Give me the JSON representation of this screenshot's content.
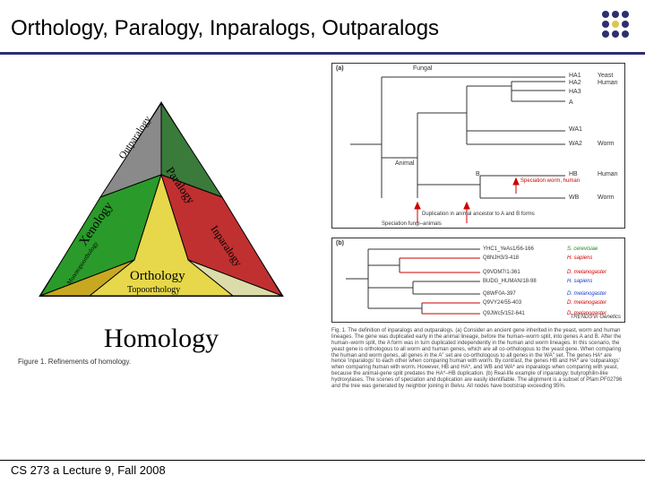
{
  "title": "Orthology, Paralogy, Inparalogs, Outparalogs",
  "footer": "CS 273 a Lecture 9, Fall 2008",
  "homology": {
    "big_label": "Homology",
    "caption": "Figure 1. Refinements of homology.",
    "regions": {
      "outparalogy": {
        "label": "Outparalogy",
        "color": "#8a8a8a"
      },
      "paralogy": {
        "label": "Paralogy",
        "color": "#3a7a3a"
      },
      "xenology": {
        "label": "Xenology",
        "color": "#2a9a2a"
      },
      "inparalogy": {
        "label": "Inparalogy",
        "color": "#c03030"
      },
      "mono": {
        "label": "Monotopoorthology",
        "color": "#c8a820"
      },
      "orthology": {
        "label": "Orthology",
        "color": "#e6d84a"
      },
      "topo": {
        "label": "Topoorthology",
        "color": "#000000"
      }
    }
  },
  "tree_a": {
    "panel": "(a)",
    "groups": {
      "fungal": "Fungal",
      "animal": "Animal",
      "B": "B"
    },
    "leaves": [
      {
        "code": "HA1",
        "sp": "Yeast"
      },
      {
        "code": "HA2",
        "sp": "Human"
      },
      {
        "code": "HA3",
        "sp": ""
      },
      {
        "code": "A",
        "sp": ""
      },
      {
        "code": "WA1",
        "sp": ""
      },
      {
        "code": "WA2",
        "sp": "Worm"
      },
      {
        "code": "HB",
        "sp": "Human"
      },
      {
        "code": "WB",
        "sp": "Worm"
      }
    ],
    "arrows": {
      "speciation": "Speciation worm, human",
      "duplication": "Duplication in animal ancestor to A and B forms",
      "spec_fungi": "Speciation fungi–animals"
    }
  },
  "tree_b": {
    "panel": "(b)",
    "rows": [
      {
        "acc": "YHC1_YeAs1/56-166",
        "sp": "S. cerevisiae",
        "cls": "green"
      },
      {
        "acc": "Q8NJH3/3-418",
        "sp": "H. sapiens",
        "cls": "red"
      },
      {
        "acc": "Q9VDM7/1-361",
        "sp": "D. melanogaster",
        "cls": "red"
      },
      {
        "acc": "BUDG_HUMAN/18-98",
        "sp": "H. sapiens",
        "cls": "blue"
      },
      {
        "acc": "Q8WF0A-397",
        "sp": "D. melanogaster",
        "cls": "blue"
      },
      {
        "acc": "Q9VY24/55-403",
        "sp": "D. melanogaster",
        "cls": "red"
      },
      {
        "acc": "Q9JWc5/152-641",
        "sp": "D. melanogaster",
        "cls": "red"
      }
    ],
    "trends": "TRENDS in Genetics"
  },
  "fig_text": "Fig. 1. The definition of inparalogs and outparalogs. (a) Consider an ancient gene inherited in the yeast, worm and human lineages. The gene was duplicated early in the animal lineage, before the human–worm split, into genes A and B. After the human–worm split, the A form was in turn duplicated independently in the human and worm lineages. In this scenario, the yeast gene is orthologous to all worm and human genes, which are all co-orthologous to the yeast gene. When comparing the human and worm genes, all genes in the A\" set are co-orthologous to all genes in the WA\" set. The genes HA* are hence 'inparalogs' to each other when comparing human with worm. By contrast, the genes HB and HA* are 'outparalogs' when comparing human with worm. However, HB and HA*, and WB and WA* are inparalogs when comparing with yeast, because the animal-gene split predates the HA*–HB duplication. (b) Real-life example of inparalogy: butyrophilin-like hydroxylases. The scenes of speciation and duplication are easily identifiable. The alignment is a subset of Pfam:PF02796 and the tree was generated by neighbor joining in Belvu. All nodes have bootstrap exceeding 95%."
}
